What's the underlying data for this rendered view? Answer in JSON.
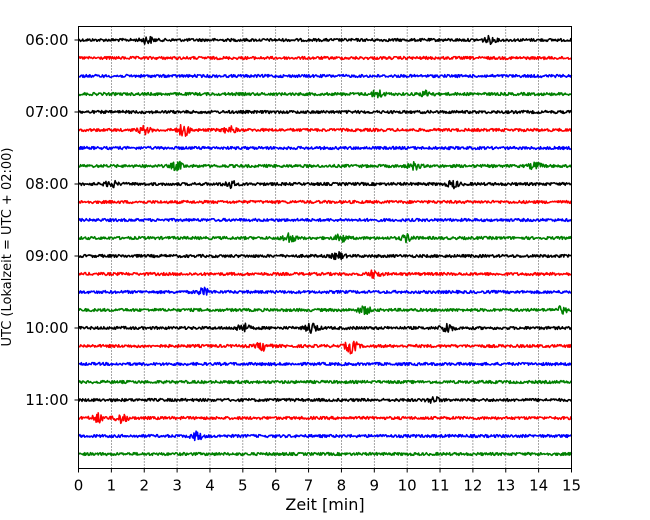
{
  "chart_data": {
    "type": "line",
    "title": "",
    "xlabel": "Zeit  [min]",
    "ylabel": "UTC (Lokalzeit = UTC + 02:00)",
    "xlim": [
      0,
      15
    ],
    "x_ticks": [
      0,
      1,
      2,
      3,
      4,
      5,
      6,
      7,
      8,
      9,
      10,
      11,
      12,
      13,
      14,
      15
    ],
    "grid": "vertical-dotted",
    "trace_interval_minutes": 15,
    "y_tick_labels": [
      "06:00",
      "07:00",
      "08:00",
      "09:00",
      "10:00",
      "11:00"
    ],
    "trace_colors": [
      "#000000",
      "#ff0000",
      "#0000ff",
      "#008000"
    ],
    "traces": [
      {
        "start": "06:00",
        "color": "#000000",
        "events": [
          [
            2.1,
            1.5
          ],
          [
            12.5,
            1.4
          ]
        ]
      },
      {
        "start": "06:15",
        "color": "#ff0000",
        "events": []
      },
      {
        "start": "06:30",
        "color": "#0000ff",
        "events": []
      },
      {
        "start": "06:45",
        "color": "#008000",
        "events": [
          [
            9.1,
            1.8
          ],
          [
            10.6,
            1.4
          ]
        ]
      },
      {
        "start": "07:00",
        "color": "#000000",
        "events": []
      },
      {
        "start": "07:15",
        "color": "#ff0000",
        "events": [
          [
            2.0,
            1.6
          ],
          [
            3.2,
            2.6
          ],
          [
            4.6,
            1.5
          ]
        ]
      },
      {
        "start": "07:30",
        "color": "#0000ff",
        "events": []
      },
      {
        "start": "07:45",
        "color": "#008000",
        "events": [
          [
            3.0,
            1.8
          ],
          [
            10.2,
            1.5
          ],
          [
            13.9,
            1.5
          ]
        ]
      },
      {
        "start": "08:00",
        "color": "#000000",
        "events": [
          [
            1.0,
            1.4
          ],
          [
            4.6,
            1.6
          ],
          [
            11.4,
            1.6
          ]
        ]
      },
      {
        "start": "08:15",
        "color": "#ff0000",
        "events": []
      },
      {
        "start": "08:30",
        "color": "#0000ff",
        "events": []
      },
      {
        "start": "08:45",
        "color": "#008000",
        "events": [
          [
            6.4,
            2.2
          ],
          [
            8.0,
            1.7
          ],
          [
            10.0,
            1.5
          ]
        ]
      },
      {
        "start": "09:00",
        "color": "#000000",
        "events": [
          [
            7.9,
            1.5
          ]
        ]
      },
      {
        "start": "09:15",
        "color": "#ff0000",
        "events": [
          [
            9.0,
            1.6
          ]
        ]
      },
      {
        "start": "09:30",
        "color": "#0000ff",
        "events": [
          [
            3.8,
            1.5
          ]
        ]
      },
      {
        "start": "09:45",
        "color": "#008000",
        "events": [
          [
            8.7,
            1.8
          ],
          [
            14.7,
            1.4
          ]
        ]
      },
      {
        "start": "10:00",
        "color": "#000000",
        "events": [
          [
            5.0,
            2.0
          ],
          [
            7.1,
            2.4
          ],
          [
            11.2,
            2.2
          ]
        ]
      },
      {
        "start": "10:15",
        "color": "#ff0000",
        "events": [
          [
            5.6,
            1.8
          ],
          [
            8.3,
            3.0
          ]
        ]
      },
      {
        "start": "10:30",
        "color": "#0000ff",
        "events": []
      },
      {
        "start": "10:45",
        "color": "#008000",
        "events": []
      },
      {
        "start": "11:00",
        "color": "#000000",
        "events": [
          [
            10.8,
            1.4
          ]
        ]
      },
      {
        "start": "11:15",
        "color": "#ff0000",
        "events": [
          [
            0.6,
            1.9
          ],
          [
            1.3,
            2.2
          ]
        ]
      },
      {
        "start": "11:30",
        "color": "#0000ff",
        "events": [
          [
            3.6,
            1.7
          ]
        ]
      },
      {
        "start": "11:45",
        "color": "#008000",
        "events": []
      }
    ]
  }
}
